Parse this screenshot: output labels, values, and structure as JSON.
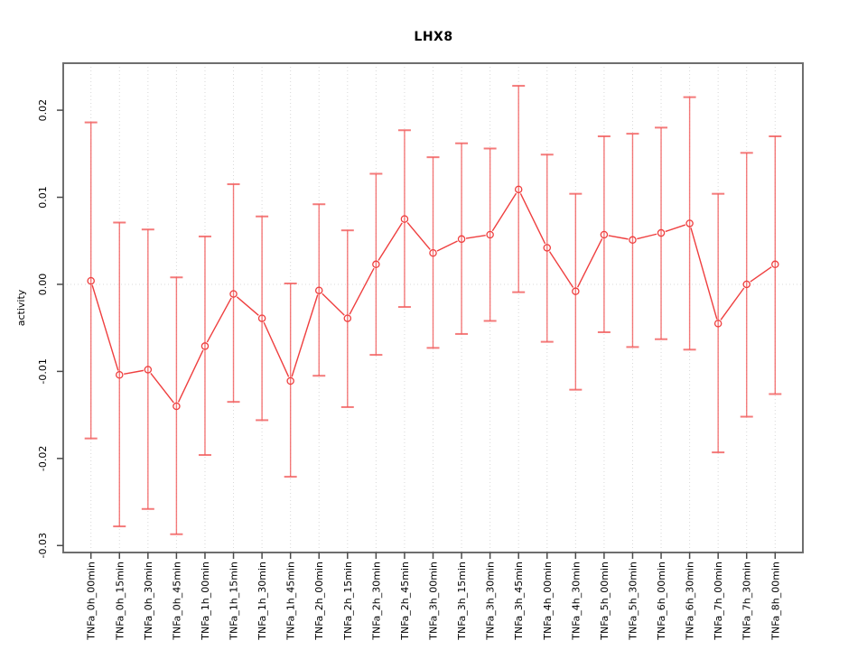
{
  "figure": {
    "title": "LHX8"
  },
  "chart_data": {
    "type": "line",
    "title": "LHX8",
    "xlabel": "",
    "ylabel": "activity",
    "legend": "none",
    "grid": "dotted vertical gridline at every category; dotted horizontal gridline at y=0 only",
    "marker": "open-circle",
    "error_bars": true,
    "ylim": [
      -0.0308,
      0.0254
    ],
    "yticks_labels": [
      "0.02",
      "0.01",
      "0.00",
      "-0.01",
      "-0.02",
      "-0.03"
    ],
    "yticks_values": [
      0.02,
      0.01,
      0.0,
      -0.01,
      -0.02,
      -0.03
    ],
    "categories": [
      "TNFa_0h_00min",
      "TNFa_0h_15min",
      "TNFa_0h_30min",
      "TNFa_0h_45min",
      "TNFa_1h_00min",
      "TNFa_1h_15min",
      "TNFa_1h_30min",
      "TNFa_1h_45min",
      "TNFa_2h_00min",
      "TNFa_2h_15min",
      "TNFa_2h_30min",
      "TNFa_2h_45min",
      "TNFa_3h_00min",
      "TNFa_3h_15min",
      "TNFa_3h_30min",
      "TNFa_3h_45min",
      "TNFa_4h_00min",
      "TNFa_4h_30min",
      "TNFa_5h_00min",
      "TNFa_5h_30min",
      "TNFa_6h_00min",
      "TNFa_6h_30min",
      "TNFa_7h_00min",
      "TNFa_7h_30min",
      "TNFa_8h_00min"
    ],
    "series": [
      {
        "name": "activity",
        "values": [
          0.0004,
          -0.0104,
          -0.0098,
          -0.014,
          -0.0071,
          -0.0011,
          -0.0039,
          -0.0111,
          -0.0007,
          -0.0039,
          0.0023,
          0.0075,
          0.0036,
          0.0052,
          0.0057,
          0.0109,
          0.0042,
          -0.0008,
          0.0057,
          0.0051,
          0.0059,
          0.007,
          -0.0045,
          0.0,
          0.0023
        ],
        "ci_upper": [
          0.0186,
          0.0071,
          0.0063,
          0.0008,
          0.0055,
          0.0115,
          0.0078,
          0.0001,
          0.0092,
          0.0062,
          0.0127,
          0.0177,
          0.0146,
          0.0162,
          0.0156,
          0.0228,
          0.0149,
          0.0104,
          0.017,
          0.0173,
          0.018,
          0.0215,
          0.0104,
          0.0151,
          0.017
        ],
        "ci_lower": [
          -0.0177,
          -0.0278,
          -0.0258,
          -0.0287,
          -0.0196,
          -0.0135,
          -0.0156,
          -0.0221,
          -0.0105,
          -0.0141,
          -0.0081,
          -0.0026,
          -0.0073,
          -0.0057,
          -0.0042,
          -0.0009,
          -0.0066,
          -0.0121,
          -0.0055,
          -0.0072,
          -0.0063,
          -0.0075,
          -0.0193,
          -0.0152,
          -0.0126
        ]
      }
    ],
    "colors": {
      "series": "#ef3f3f",
      "error_bar": "#f25a5a",
      "grid": "#d8d8d8",
      "frame": "#6e6e6e",
      "tick": "#4a4a4a",
      "text": "#000000",
      "background": "#ffffff"
    }
  }
}
